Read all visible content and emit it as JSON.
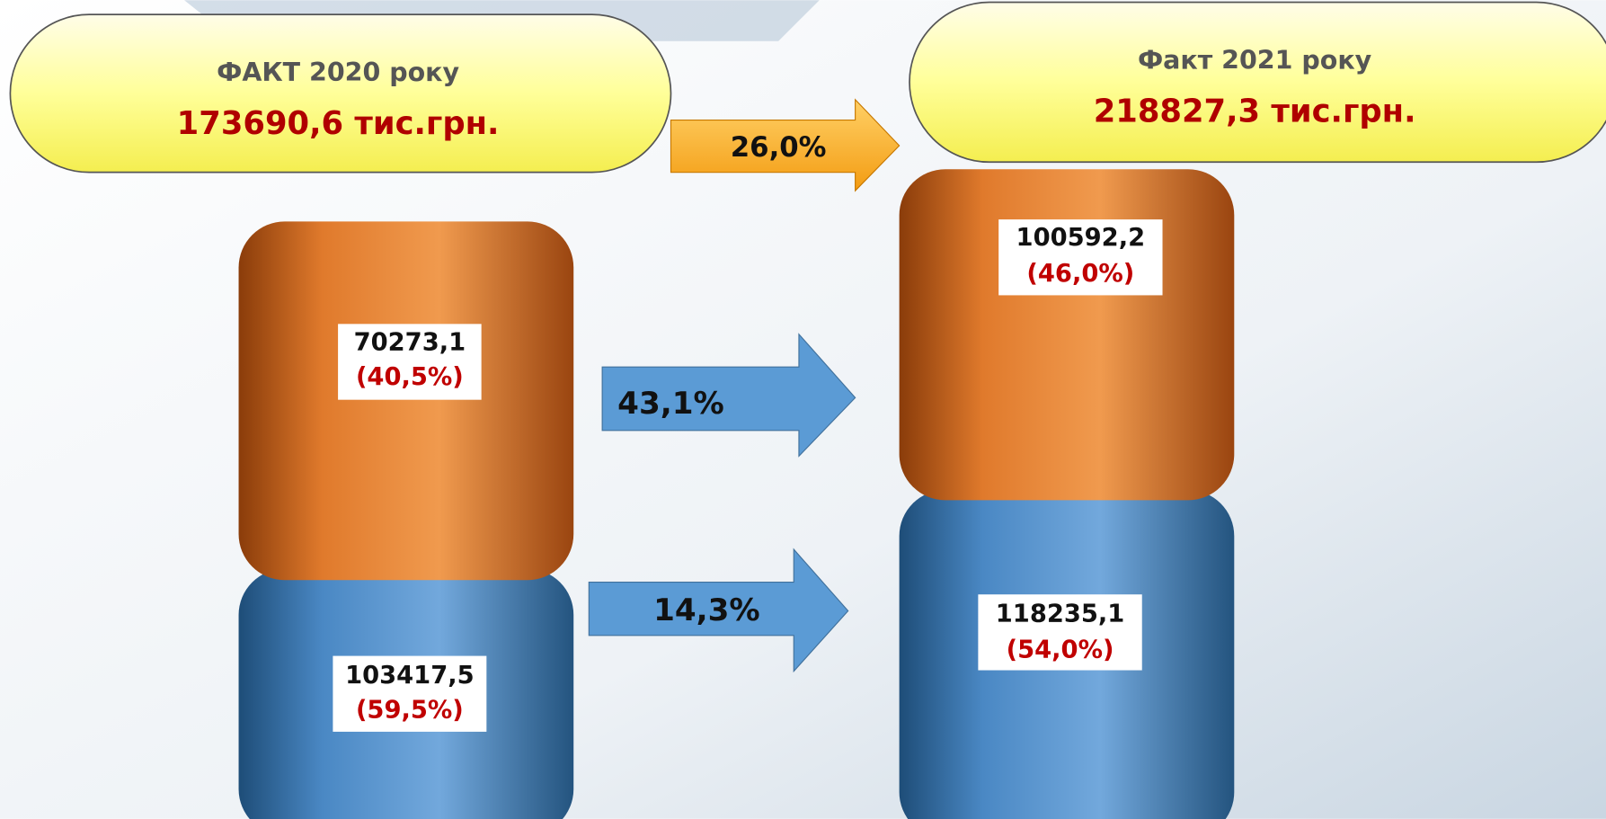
{
  "left": {
    "title": "ФАКТ 2020 року",
    "total": "173690,6 тис.грн.",
    "segments": [
      {
        "value": "70273,1",
        "share": "(40,5%)"
      },
      {
        "value": "103417,5",
        "share": "(59,5%)"
      }
    ]
  },
  "right": {
    "title": "Факт 2021 року",
    "total": "218827,3 тис.грн.",
    "segments": [
      {
        "value": "100592,2",
        "share": "(46,0%)"
      },
      {
        "value": "118235,1",
        "share": "(54,0%)"
      }
    ]
  },
  "growth": {
    "total": "26,0%",
    "top": "43,1%",
    "bottom": "14,3%"
  }
}
